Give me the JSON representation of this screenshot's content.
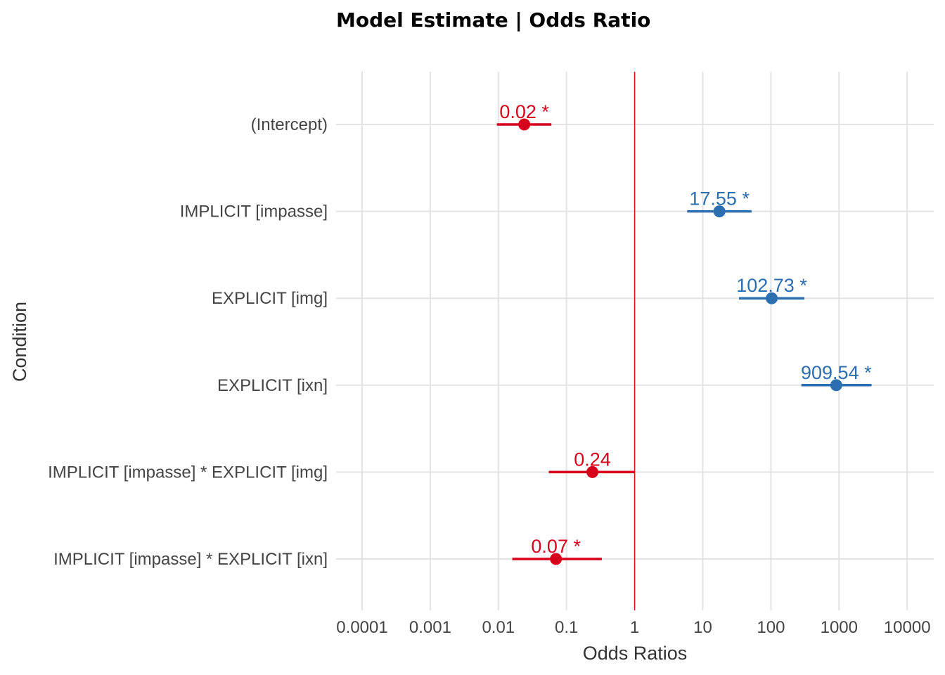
{
  "chart_data": {
    "type": "forest",
    "title": "Model Estimate | Odds Ratio",
    "xlabel": "Odds Ratios",
    "ylabel": "Condition",
    "x_scale": "log10",
    "xlim": [
      5e-05,
      20000
    ],
    "x_ticks": [
      "0.0001",
      "0.001",
      "0.01",
      "0.1",
      "1",
      "10",
      "100",
      "1000",
      "10000"
    ],
    "reference_line": 1,
    "reference_line_color": "#d7191c",
    "grid": true,
    "legend": "none",
    "colors": {
      "positive": "#2c6fb0",
      "negative": "#d7001c"
    },
    "terms": [
      {
        "label": "(Intercept)",
        "estimate": 0.024,
        "ci_low": 0.0095,
        "ci_high": 0.06,
        "estimate_label": "0.02 *",
        "direction": "negative"
      },
      {
        "label": "IMPLICIT [impasse]",
        "estimate": 17.55,
        "ci_low": 5.9,
        "ci_high": 52,
        "estimate_label": "17.55 *",
        "direction": "positive"
      },
      {
        "label": "EXPLICIT [img]",
        "estimate": 102.73,
        "ci_low": 34,
        "ci_high": 310,
        "estimate_label": "102.73 *",
        "direction": "positive"
      },
      {
        "label": "EXPLICIT [ixn]",
        "estimate": 909.54,
        "ci_low": 280,
        "ci_high": 3000,
        "estimate_label": "909.54 *",
        "direction": "positive"
      },
      {
        "label": "IMPLICIT [impasse] * EXPLICIT [img]",
        "estimate": 0.24,
        "ci_low": 0.055,
        "ci_high": 1.0,
        "estimate_label": "0.24",
        "direction": "negative"
      },
      {
        "label": "IMPLICIT [impasse] * EXPLICIT [ixn]",
        "estimate": 0.07,
        "ci_low": 0.016,
        "ci_high": 0.33,
        "estimate_label": "0.07 *",
        "direction": "negative"
      }
    ]
  }
}
